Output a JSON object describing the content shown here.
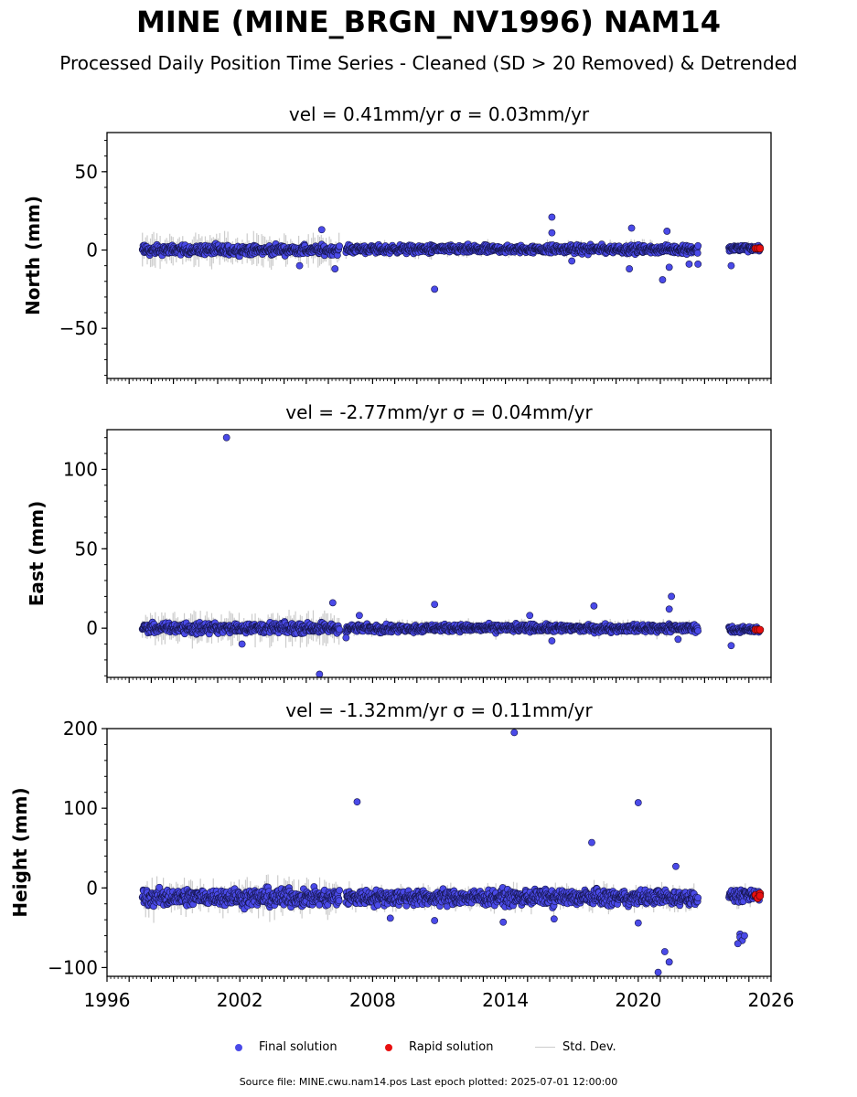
{
  "header": {
    "title": "MINE (MINE_BRGN_NV1996) NAM14",
    "subtitle": "Processed Daily Position Time Series - Cleaned (SD > 20 Removed) & Detrended"
  },
  "legend": {
    "final_label": "Final solution",
    "rapid_label": "Rapid solution",
    "std_label": "Std. Dev.",
    "final_color": "#4a4ae8",
    "rapid_color": "#e81010",
    "std_color": "#cccccc"
  },
  "footer": {
    "text": "Source file: MINE.cwu.nam14.pos  Last epoch plotted: 2025-07-01 12:00:00"
  },
  "chart_data": [
    {
      "type": "scatter",
      "title": "vel = 0.41mm/yr   σ = 0.03mm/yr",
      "ylabel": "North (mm)",
      "xlim": [
        1996,
        2026
      ],
      "ylim": [
        -82,
        75
      ],
      "yticks": [
        50,
        0,
        -50
      ],
      "ytick_labels": [
        "50",
        "0",
        "−50"
      ],
      "xticks": [],
      "segments": [
        {
          "start": 1997.6,
          "end": 2006.5,
          "center": 0,
          "spread": 2.6,
          "err": 6
        },
        {
          "start": 2006.8,
          "end": 2022.7,
          "center": 0.5,
          "spread": 2.2,
          "err": 2.5
        },
        {
          "start": 2024.1,
          "end": 2025.5,
          "center": 1,
          "spread": 1.8,
          "err": 2
        }
      ],
      "outliers": [
        [
          2004.7,
          -10
        ],
        [
          2005.7,
          13
        ],
        [
          2006.3,
          -12
        ],
        [
          2010.8,
          -25
        ],
        [
          2016.1,
          21
        ],
        [
          2016.1,
          11
        ],
        [
          2019.7,
          14
        ],
        [
          2019.6,
          -12
        ],
        [
          2021.1,
          -19
        ],
        [
          2021.3,
          12
        ],
        [
          2021.4,
          -11
        ],
        [
          2022.3,
          -9
        ],
        [
          2022.7,
          -9
        ],
        [
          2024.2,
          -10
        ],
        [
          2017.0,
          -7
        ]
      ],
      "rapid": [
        [
          2025.3,
          1
        ],
        [
          2025.4,
          1
        ],
        [
          2025.5,
          1
        ]
      ]
    },
    {
      "type": "scatter",
      "title": "vel = -2.77mm/yr   σ = 0.04mm/yr",
      "ylabel": "East (mm)",
      "xlim": [
        1996,
        2026
      ],
      "ylim": [
        -31,
        125
      ],
      "yticks": [
        100,
        50,
        0
      ],
      "ytick_labels": [
        "100",
        "50",
        "0"
      ],
      "xticks": [],
      "segments": [
        {
          "start": 1997.6,
          "end": 2006.5,
          "center": 0,
          "spread": 2.6,
          "err": 6
        },
        {
          "start": 2006.8,
          "end": 2022.7,
          "center": 0,
          "spread": 2.0,
          "err": 2.5
        },
        {
          "start": 2024.1,
          "end": 2025.5,
          "center": -1,
          "spread": 1.6,
          "err": 2
        }
      ],
      "outliers": [
        [
          2001.4,
          120
        ],
        [
          2005.6,
          -29
        ],
        [
          2006.2,
          16
        ],
        [
          2007.4,
          8
        ],
        [
          2010.8,
          15
        ],
        [
          2015.1,
          8
        ],
        [
          2018.0,
          14
        ],
        [
          2021.5,
          20
        ],
        [
          2021.4,
          12
        ],
        [
          2016.1,
          -8
        ],
        [
          2024.2,
          -11
        ],
        [
          2021.8,
          -7
        ],
        [
          2002.1,
          -10
        ],
        [
          2006.8,
          -6
        ]
      ],
      "rapid": [
        [
          2025.3,
          -1
        ],
        [
          2025.4,
          -1
        ],
        [
          2025.5,
          -1
        ]
      ]
    },
    {
      "type": "scatter",
      "title": "vel = -1.32mm/yr   σ = 0.11mm/yr",
      "ylabel": "Height (mm)",
      "xlim": [
        1996,
        2026
      ],
      "ylim": [
        -111,
        200
      ],
      "yticks": [
        200,
        100,
        0,
        -100
      ],
      "ytick_labels": [
        "200",
        "100",
        "0",
        "−100"
      ],
      "xticks": [
        1996,
        2002,
        2008,
        2014,
        2020,
        2026
      ],
      "segments": [
        {
          "start": 1997.6,
          "end": 2006.5,
          "center": -12,
          "spread": 9,
          "err": 12
        },
        {
          "start": 2006.8,
          "end": 2022.7,
          "center": -12,
          "spread": 8,
          "err": 8
        },
        {
          "start": 2024.1,
          "end": 2025.5,
          "center": -10,
          "spread": 6,
          "err": 6
        }
      ],
      "outliers": [
        [
          2007.3,
          108
        ],
        [
          2014.4,
          195
        ],
        [
          2017.9,
          57
        ],
        [
          2020.0,
          107
        ],
        [
          2021.2,
          -80
        ],
        [
          2021.4,
          -93
        ],
        [
          2020.9,
          -106
        ],
        [
          2021.7,
          27
        ],
        [
          2024.6,
          -58
        ],
        [
          2024.6,
          -62
        ],
        [
          2024.7,
          -66
        ],
        [
          2024.5,
          -70
        ],
        [
          2024.8,
          -60
        ],
        [
          2020.0,
          -44
        ],
        [
          2013.9,
          -43
        ],
        [
          2010.8,
          -41
        ],
        [
          2016.2,
          -39
        ],
        [
          2008.8,
          -38
        ]
      ],
      "rapid": [
        [
          2025.3,
          -9
        ],
        [
          2025.4,
          -13
        ],
        [
          2025.5,
          -7
        ],
        [
          2025.5,
          -10
        ]
      ]
    }
  ]
}
